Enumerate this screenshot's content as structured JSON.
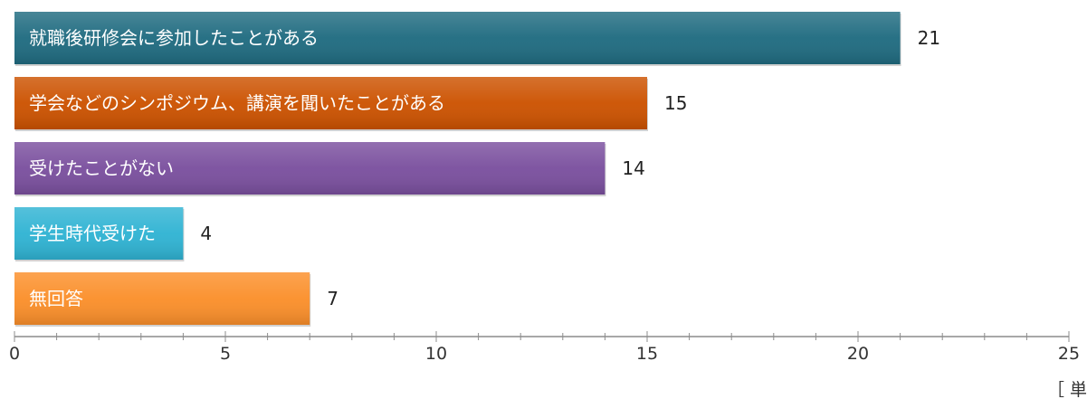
{
  "chart_data": {
    "type": "bar",
    "orientation": "horizontal",
    "categories": [
      "就職後研修会に参加したことがある",
      "学会などのシンポジウム、講演を聞いたことがある",
      "受けたことがない",
      "学生時代受けた",
      "無回答"
    ],
    "values": [
      21,
      15,
      14,
      4,
      7
    ],
    "colors": [
      "#1f6b80",
      "#cc5200",
      "#7a4f9e",
      "#2fb3d3",
      "#fb8f2a"
    ],
    "xlim": [
      0,
      25
    ],
    "xticks": [
      0,
      5,
      10,
      15,
      20,
      25
    ],
    "xtick_labels": [
      "0",
      "5",
      "10",
      "15",
      "20",
      "25"
    ],
    "title": "",
    "xlabel": "",
    "ylabel": "",
    "unit_note": "［ 単位",
    "grid": false,
    "legend": "none"
  }
}
